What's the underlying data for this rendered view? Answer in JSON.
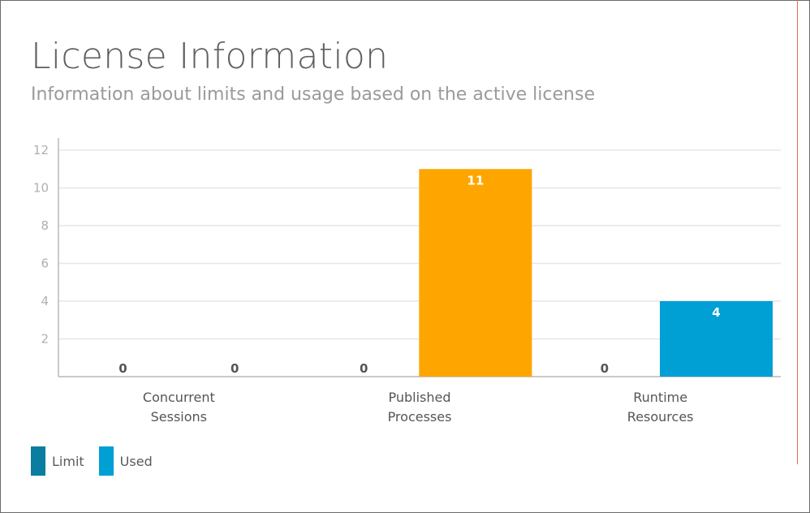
{
  "header": {
    "title": "License Information",
    "subtitle": "Information about limits and usage based on the active license"
  },
  "colors": {
    "limit": "#0a7ea0",
    "used": "#009fd4",
    "published_used": "#ffa500",
    "grid": "#e6e6e6",
    "axis": "#b8b8b8",
    "tick_text": "#b0b0b0",
    "category_text": "#555555",
    "value_dark": "#555555",
    "value_light": "#ffffff"
  },
  "legend": [
    {
      "label": "Limit",
      "color": "#0a7ea0"
    },
    {
      "label": "Used",
      "color": "#009fd4"
    }
  ],
  "chart_data": {
    "type": "bar",
    "categories": [
      [
        "Concurrent",
        "Sessions"
      ],
      [
        "Published",
        "Processes"
      ],
      [
        "Runtime",
        "Resources"
      ]
    ],
    "series": [
      {
        "name": "Limit",
        "values": [
          0,
          0,
          0
        ]
      },
      {
        "name": "Used",
        "values": [
          0,
          11,
          4
        ]
      }
    ],
    "bar_colors_used": [
      "#009fd4",
      "#ffa500",
      "#009fd4"
    ],
    "ylim": [
      0,
      12
    ],
    "yticks": [
      2,
      4,
      6,
      8,
      10,
      12
    ],
    "grid": true,
    "legend_position": "bottom-left"
  }
}
